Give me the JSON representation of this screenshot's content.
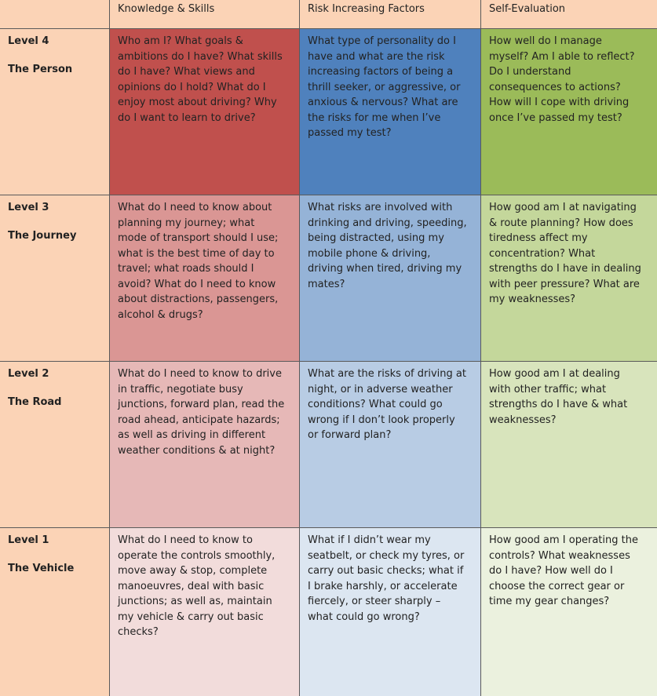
{
  "table": {
    "columns": [
      "Knowledge & Skills",
      "Risk Increasing Factors",
      "Self-Evaluation"
    ],
    "rows": [
      {
        "level": "Level 4",
        "name": "The Person",
        "cells": [
          "Who am I? What goals & ambitions do I have? What skills do I have? What views and opinions do I hold? What do I enjoy most about driving? Why do I want to learn to drive?",
          "What type of personality do I have and what are the risk increasing factors of being a thrill seeker, or aggressive, or anxious & nervous? What are the risks for me when I’ve passed my test?",
          "How well do I manage myself? Am I able to reflect? Do I understand consequences to actions? How will I cope with driving once I’ve passed my test?"
        ]
      },
      {
        "level": "Level 3",
        "name": "The Journey",
        "cells": [
          "What do I need to know about planning my journey; what mode of transport should I use; what is the best time of day to travel; what roads should I avoid? What do I need to know about distractions, passengers, alcohol & drugs?",
          "What risks are involved with drinking and driving, speeding, being distracted, using my mobile phone & driving, driving when tired, driving my mates?",
          "How good am I at navigating & route planning? How does tiredness affect my concentration? What strengths do I have in dealing with peer pressure? What are my weaknesses?"
        ]
      },
      {
        "level": "Level 2",
        "name": "The Road",
        "cells": [
          "What do I need to know to drive in traffic, negotiate busy junctions, forward plan, read the road ahead, anticipate hazards; as well as driving in different weather conditions & at night?",
          "What are the risks of driving at night, or in adverse weather conditions? What could go wrong if I don’t look properly or forward plan?",
          "How good am I at dealing with other traffic; what strengths do I have & what weaknesses?"
        ]
      },
      {
        "level": "Level 1",
        "name": "The Vehicle",
        "cells": [
          "What do I need to know to operate the controls smoothly, move away & stop, complete manoeuvres, deal with basic junctions; as well as, maintain my vehicle & carry out basic checks?",
          "What if I didn’t wear my seatbelt, or check my tyres, or carry out basic checks; what if I brake harshly, or accelerate fiercely, or steer sharply – what could go wrong?",
          "How good am I operating the controls? What weaknesses do I have? How well do I choose the correct gear or time my gear changes?"
        ]
      }
    ]
  }
}
